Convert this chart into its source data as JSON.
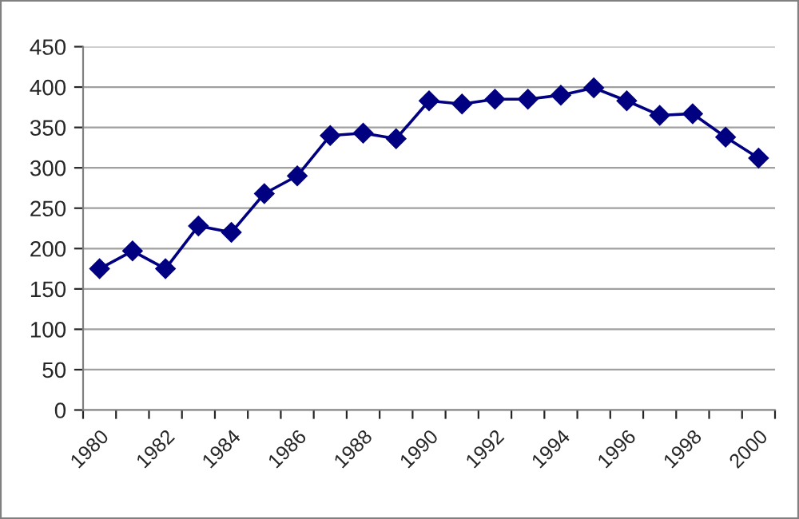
{
  "chart_data": {
    "type": "line",
    "categories": [
      "1980",
      null,
      "1982",
      null,
      "1984",
      null,
      "1986",
      null,
      "1988",
      null,
      "1990",
      null,
      "1992",
      null,
      "1994",
      null,
      "1996",
      null,
      "1998",
      null,
      "2000"
    ],
    "series": [
      {
        "color": "#000080",
        "values": [
          175,
          197,
          175,
          228,
          220,
          268,
          290,
          340,
          343,
          336,
          383,
          379,
          385,
          385,
          390,
          399,
          383,
          365,
          367,
          338,
          312
        ]
      }
    ],
    "ylim": [
      0,
      450
    ],
    "yticks": [
      0,
      50,
      100,
      150,
      200,
      250,
      300,
      350,
      400,
      450
    ],
    "grid": "y",
    "marker": "diamond",
    "line_style": "solid"
  }
}
